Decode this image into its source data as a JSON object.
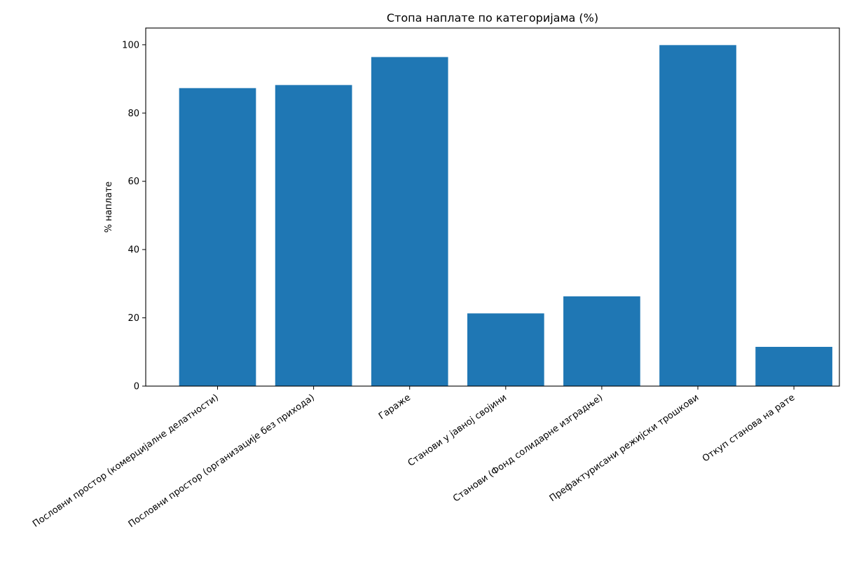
{
  "chart_data": {
    "type": "bar",
    "title": "Стопа наплате по категоријама (%)",
    "xlabel": "",
    "ylabel": "% наплате",
    "categories": [
      "Пословни простор (комерцијалне делатности)",
      "Пословни простор (организације без прихода)",
      "Гараже",
      "Станови у јавној својини",
      "Станови (Фонд солидарне изградње)",
      "Префактурисани режијски трошкови",
      "Откуп станова на рате"
    ],
    "values": [
      87.3,
      88.2,
      96.4,
      21.3,
      26.3,
      99.9,
      11.5
    ],
    "ylim": [
      0,
      104.9
    ],
    "yticks": [
      0,
      20,
      40,
      60,
      80,
      100
    ],
    "grid": false,
    "bar_color": "#1f77b4"
  }
}
